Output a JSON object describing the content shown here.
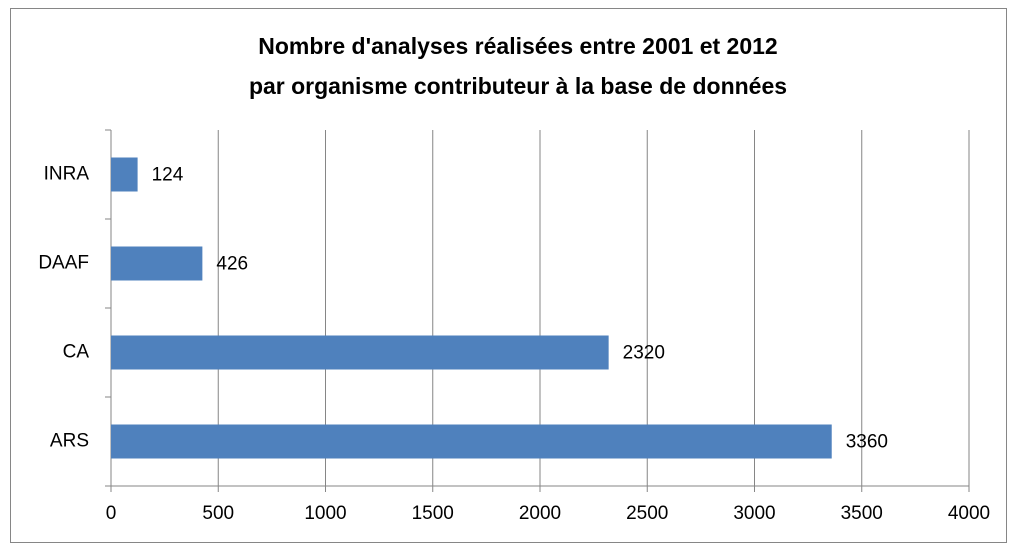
{
  "chart_data": {
    "type": "bar",
    "orientation": "horizontal",
    "title": [
      "Nombre d'analyses réalisées entre 2001 et 2012",
      "par organisme contributeur à la base de données"
    ],
    "categories": [
      "INRA",
      "DAAF",
      "CA",
      "ARS"
    ],
    "values": [
      124,
      426,
      2320,
      3360
    ],
    "color": "#4f81bd",
    "xlim": [
      0,
      4000
    ],
    "xticks": [
      0,
      500,
      1000,
      1500,
      2000,
      2500,
      3000,
      3500,
      4000
    ],
    "grid": true
  }
}
